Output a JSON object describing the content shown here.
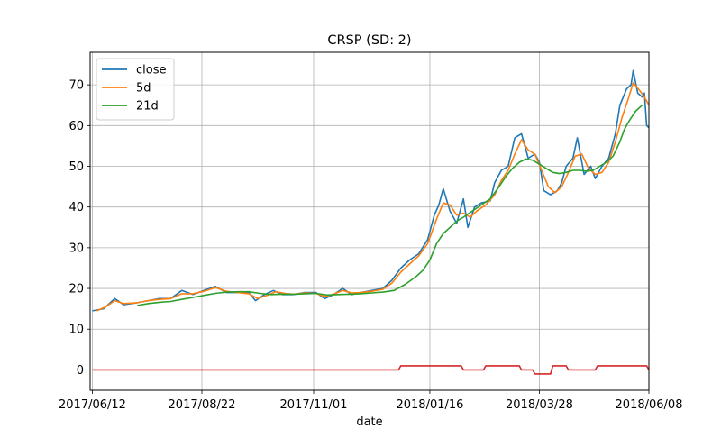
{
  "chart_data": {
    "type": "line",
    "title": "CRSP (SD: 2)",
    "xlabel": "date",
    "ylabel": "",
    "x_tick_labels": [
      "2017/06/12",
      "2017/08/22",
      "2017/11/01",
      "2018/01/16",
      "2018/03/28",
      "2018/06/08"
    ],
    "x_tick_idx": [
      0,
      49,
      99,
      151,
      200,
      249
    ],
    "xlim": [
      -1,
      249
    ],
    "ylim": [
      -5,
      78
    ],
    "y_ticks": [
      0,
      10,
      20,
      30,
      40,
      50,
      60,
      70
    ],
    "grid": true,
    "legend": {
      "position": "top-left",
      "entries": [
        "close",
        "5d",
        "21d"
      ]
    },
    "colors": {
      "close": "#1f77b4",
      "5d": "#ff7f0e",
      "21d": "#2ca02c",
      "signal": "#d62728"
    },
    "series": [
      {
        "name": "close",
        "points": [
          [
            0,
            14.5
          ],
          [
            5,
            15
          ],
          [
            10,
            17.5
          ],
          [
            14,
            16
          ],
          [
            20,
            16.5
          ],
          [
            25,
            17
          ],
          [
            30,
            17.5
          ],
          [
            35,
            17.5
          ],
          [
            40,
            19.5
          ],
          [
            45,
            18.5
          ],
          [
            50,
            19.5
          ],
          [
            55,
            20.5
          ],
          [
            60,
            19
          ],
          [
            65,
            19
          ],
          [
            70,
            19
          ],
          [
            73,
            17
          ],
          [
            77,
            18.5
          ],
          [
            81,
            19.5
          ],
          [
            85,
            18.5
          ],
          [
            90,
            18.5
          ],
          [
            95,
            19
          ],
          [
            100,
            19
          ],
          [
            104,
            17.5
          ],
          [
            108,
            18.5
          ],
          [
            112,
            20
          ],
          [
            116,
            18.5
          ],
          [
            120,
            19
          ],
          [
            125,
            19.5
          ],
          [
            130,
            20
          ],
          [
            134,
            22
          ],
          [
            138,
            25
          ],
          [
            142,
            27
          ],
          [
            146,
            28.5
          ],
          [
            150,
            32
          ],
          [
            153,
            38
          ],
          [
            155,
            40.5
          ],
          [
            157,
            44.5
          ],
          [
            160,
            39
          ],
          [
            163,
            36
          ],
          [
            166,
            42
          ],
          [
            168,
            35
          ],
          [
            171,
            40
          ],
          [
            174,
            41
          ],
          [
            178,
            41.5
          ],
          [
            180,
            46
          ],
          [
            183,
            49
          ],
          [
            186,
            50
          ],
          [
            189,
            57
          ],
          [
            192,
            58
          ],
          [
            195,
            52
          ],
          [
            198,
            53
          ],
          [
            200,
            51
          ],
          [
            202,
            44
          ],
          [
            205,
            43
          ],
          [
            208,
            44
          ],
          [
            210,
            46
          ],
          [
            212,
            50
          ],
          [
            215,
            52
          ],
          [
            217,
            57
          ],
          [
            220,
            48
          ],
          [
            223,
            50
          ],
          [
            225,
            47
          ],
          [
            228,
            50
          ],
          [
            231,
            52
          ],
          [
            234,
            58
          ],
          [
            236,
            65
          ],
          [
            239,
            69
          ],
          [
            241,
            70
          ],
          [
            242,
            73.5
          ],
          [
            244,
            68
          ],
          [
            246,
            67
          ],
          [
            247,
            68
          ],
          [
            248,
            60
          ],
          [
            249,
            59.5
          ]
        ]
      },
      {
        "name": "5d",
        "points": [
          [
            2,
            14.5
          ],
          [
            6,
            15.5
          ],
          [
            10,
            17
          ],
          [
            14,
            16.3
          ],
          [
            20,
            16.5
          ],
          [
            25,
            17
          ],
          [
            30,
            17.3
          ],
          [
            35,
            17.5
          ],
          [
            40,
            18.7
          ],
          [
            45,
            18.7
          ],
          [
            50,
            19.3
          ],
          [
            55,
            20.2
          ],
          [
            60,
            19.3
          ],
          [
            65,
            19
          ],
          [
            70,
            18.7
          ],
          [
            74,
            17.5
          ],
          [
            78,
            18.3
          ],
          [
            82,
            19.2
          ],
          [
            86,
            18.8
          ],
          [
            90,
            18.6
          ],
          [
            95,
            18.9
          ],
          [
            100,
            18.8
          ],
          [
            104,
            18
          ],
          [
            108,
            18.6
          ],
          [
            112,
            19.5
          ],
          [
            116,
            18.9
          ],
          [
            120,
            19
          ],
          [
            125,
            19.3
          ],
          [
            130,
            19.8
          ],
          [
            134,
            21.3
          ],
          [
            138,
            24
          ],
          [
            142,
            26
          ],
          [
            146,
            28
          ],
          [
            150,
            31
          ],
          [
            154,
            37
          ],
          [
            157,
            41
          ],
          [
            160,
            40.5
          ],
          [
            163,
            38
          ],
          [
            166,
            38.5
          ],
          [
            169,
            37.5
          ],
          [
            172,
            39
          ],
          [
            176,
            40.5
          ],
          [
            180,
            43
          ],
          [
            183,
            46.5
          ],
          [
            186,
            49
          ],
          [
            189,
            53
          ],
          [
            192,
            56.5
          ],
          [
            195,
            54
          ],
          [
            198,
            53
          ],
          [
            201,
            49
          ],
          [
            204,
            45
          ],
          [
            207,
            43.5
          ],
          [
            210,
            45
          ],
          [
            213,
            48.5
          ],
          [
            216,
            52.5
          ],
          [
            219,
            53
          ],
          [
            222,
            49.5
          ],
          [
            225,
            48
          ],
          [
            228,
            48.5
          ],
          [
            231,
            51
          ],
          [
            234,
            56
          ],
          [
            237,
            62
          ],
          [
            240,
            67
          ],
          [
            242,
            70.5
          ],
          [
            245,
            68.5
          ],
          [
            247,
            67
          ],
          [
            249,
            65
          ]
        ]
      },
      {
        "name": "21d",
        "points": [
          [
            20,
            15.8
          ],
          [
            25,
            16.3
          ],
          [
            30,
            16.6
          ],
          [
            35,
            16.8
          ],
          [
            40,
            17.3
          ],
          [
            45,
            17.8
          ],
          [
            50,
            18.3
          ],
          [
            55,
            18.8
          ],
          [
            60,
            19.1
          ],
          [
            65,
            19.2
          ],
          [
            70,
            19.2
          ],
          [
            75,
            18.8
          ],
          [
            80,
            18.5
          ],
          [
            85,
            18.6
          ],
          [
            90,
            18.6
          ],
          [
            95,
            18.7
          ],
          [
            100,
            18.8
          ],
          [
            105,
            18.4
          ],
          [
            110,
            18.5
          ],
          [
            115,
            18.6
          ],
          [
            120,
            18.7
          ],
          [
            125,
            18.9
          ],
          [
            130,
            19.1
          ],
          [
            135,
            19.5
          ],
          [
            140,
            21
          ],
          [
            145,
            23
          ],
          [
            148,
            24.5
          ],
          [
            151,
            27
          ],
          [
            154,
            31
          ],
          [
            157,
            33.5
          ],
          [
            160,
            35
          ],
          [
            163,
            36.5
          ],
          [
            166,
            37.5
          ],
          [
            170,
            39
          ],
          [
            174,
            40.5
          ],
          [
            178,
            42
          ],
          [
            182,
            45
          ],
          [
            185,
            47.5
          ],
          [
            188,
            49.5
          ],
          [
            191,
            51
          ],
          [
            194,
            51.8
          ],
          [
            197,
            51.5
          ],
          [
            200,
            50.5
          ],
          [
            203,
            49.5
          ],
          [
            206,
            48.5
          ],
          [
            209,
            48.2
          ],
          [
            212,
            48.5
          ],
          [
            215,
            49
          ],
          [
            218,
            49
          ],
          [
            221,
            48.8
          ],
          [
            224,
            49
          ],
          [
            227,
            50
          ],
          [
            230,
            51
          ],
          [
            233,
            52.5
          ],
          [
            236,
            56
          ],
          [
            238,
            59
          ],
          [
            240,
            61
          ],
          [
            243,
            63.5
          ],
          [
            246,
            65
          ]
        ]
      },
      {
        "name": "signal",
        "points": [
          [
            0,
            0
          ],
          [
            137,
            0
          ],
          [
            138,
            1
          ],
          [
            165,
            1
          ],
          [
            166,
            0
          ],
          [
            175,
            0
          ],
          [
            176,
            1
          ],
          [
            191,
            1
          ],
          [
            192,
            0
          ],
          [
            197,
            0
          ],
          [
            198,
            -1
          ],
          [
            205,
            -1
          ],
          [
            206,
            1
          ],
          [
            212,
            1
          ],
          [
            213,
            0
          ],
          [
            225,
            0
          ],
          [
            226,
            1
          ],
          [
            248,
            1
          ],
          [
            249,
            0
          ]
        ]
      }
    ]
  }
}
